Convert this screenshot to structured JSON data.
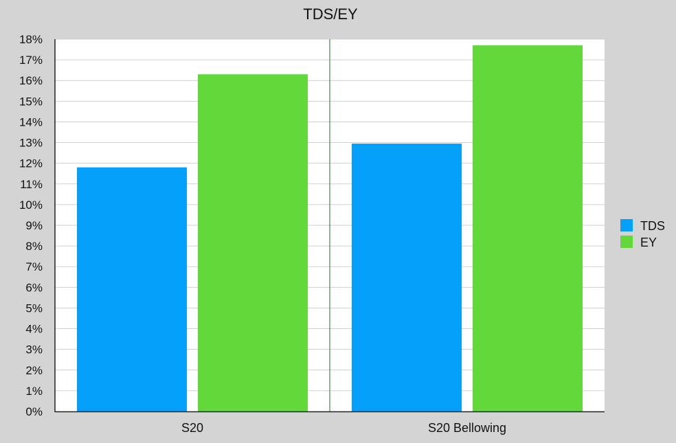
{
  "colors": {
    "background": "#d4d4d4",
    "plot_background": "#ffffff",
    "grid": "#cfcfcf",
    "axis": "#222222",
    "separator": "#2e6b2e"
  },
  "chart_data": {
    "type": "bar",
    "title": "TDS/EY",
    "xlabel": "",
    "ylabel": "",
    "categories": [
      "S20",
      "S20 Bellowing"
    ],
    "series": [
      {
        "name": "TDS",
        "color": "#05a0fa",
        "values": [
          11.8,
          12.95
        ]
      },
      {
        "name": "EY",
        "color": "#62d83a",
        "values": [
          16.3,
          17.7
        ]
      }
    ],
    "ylim": [
      0,
      18
    ],
    "y_ticks": [
      "0%",
      "1%",
      "2%",
      "3%",
      "4%",
      "5%",
      "6%",
      "7%",
      "8%",
      "9%",
      "10%",
      "11%",
      "12%",
      "13%",
      "14%",
      "15%",
      "16%",
      "17%",
      "18%"
    ],
    "grid": true,
    "legend_position": "right"
  }
}
